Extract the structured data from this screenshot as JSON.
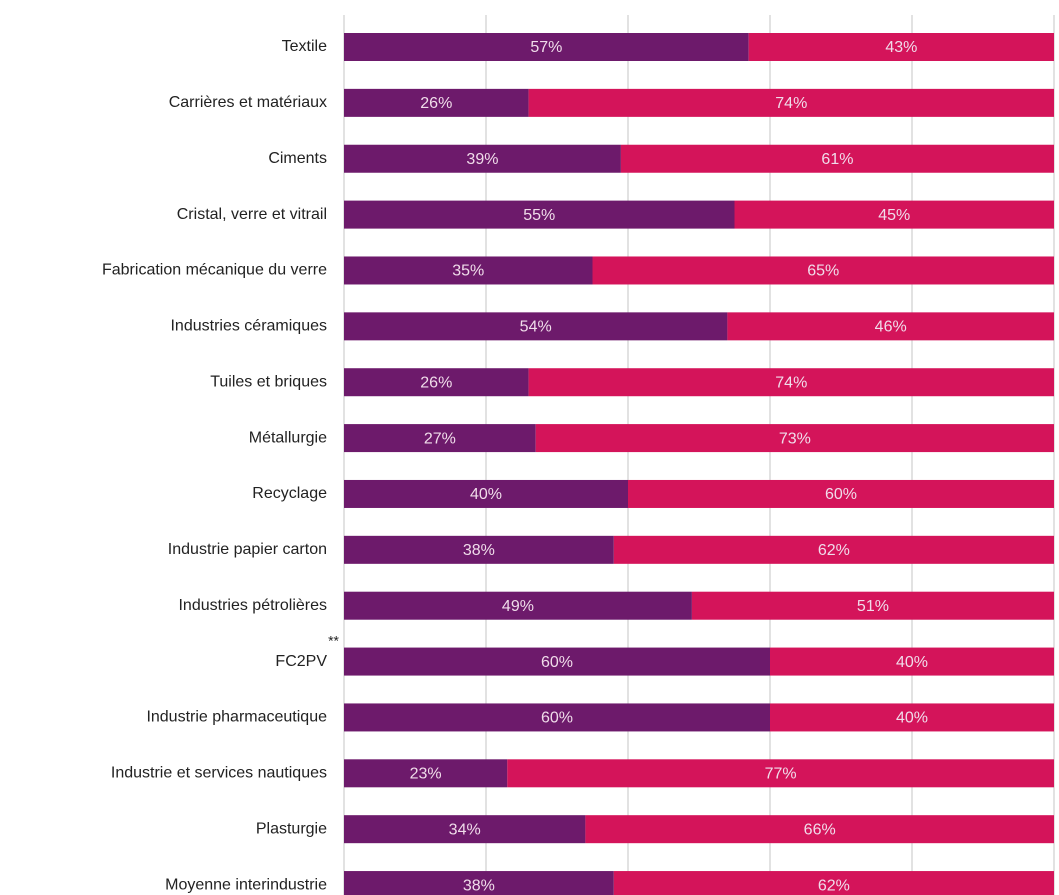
{
  "chart_data": {
    "type": "stacked-bar-horizontal",
    "categories": [
      "Textile",
      "Carrières et matériaux",
      "Ciments",
      "Cristal, verre et vitrail",
      "Fabrication mécanique du verre",
      "Industries céramiques",
      "Tuiles et briques",
      "Métallurgie",
      "Recyclage",
      "Industrie papier carton",
      "Industries pétrolières",
      "FC2PV",
      "Industrie pharmaceutique",
      "Industrie et services nautiques",
      "Plasturgie",
      "Moyenne interindustrie"
    ],
    "annotations": [
      {
        "category": 11,
        "text": "**"
      }
    ],
    "series": [
      {
        "color": "#6d1a6b",
        "values": [
          57,
          26,
          39,
          55,
          35,
          54,
          26,
          27,
          40,
          38,
          49,
          60,
          60,
          23,
          34,
          38
        ],
        "value_labels": [
          "57%",
          "26%",
          "39%",
          "55%",
          "35%",
          "54%",
          "26%",
          "27%",
          "40%",
          "38%",
          "49%",
          "60%",
          "60%",
          "23%",
          "34%",
          "38%"
        ]
      },
      {
        "color": "#d4145a",
        "values": [
          43,
          74,
          61,
          45,
          65,
          46,
          74,
          73,
          60,
          62,
          51,
          40,
          40,
          77,
          66,
          62
        ],
        "value_labels": [
          "43%",
          "74%",
          "61%",
          "45%",
          "65%",
          "46%",
          "74%",
          "73%",
          "60%",
          "62%",
          "51%",
          "40%",
          "40%",
          "77%",
          "66%",
          "62%"
        ]
      }
    ],
    "xlim": [
      0,
      100
    ],
    "xticks": [
      0,
      20,
      40,
      60,
      80,
      100
    ],
    "grid": true
  }
}
